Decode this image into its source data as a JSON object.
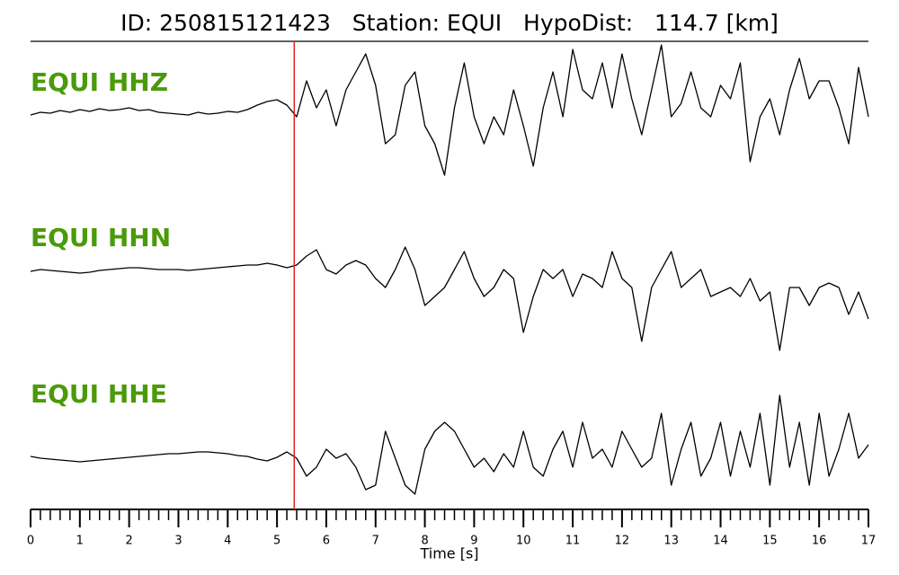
{
  "chart_data": {
    "type": "seismogram",
    "title": "ID: 250815121423   Station: EQUI   HypoDist:   114.7 [km]",
    "xlabel": "Time [s]",
    "xlim": [
      0,
      17
    ],
    "xticks": [
      0,
      1,
      2,
      3,
      4,
      5,
      6,
      7,
      8,
      9,
      10,
      11,
      12,
      13,
      14,
      15,
      16,
      17
    ],
    "xminorticks": [
      0,
      0.2,
      0.4,
      0.6,
      0.8,
      1,
      1.2,
      1.4,
      1.6,
      1.8,
      2,
      2.2,
      2.4,
      2.6,
      2.8,
      3,
      3.2,
      3.4,
      3.6,
      3.8,
      4,
      4.2,
      4.4,
      4.6,
      4.8,
      5,
      5.2,
      5.4,
      5.6,
      5.8,
      6,
      6.2,
      6.4,
      6.6,
      6.8,
      7,
      7.2,
      7.4,
      7.6,
      7.8,
      8,
      8.2,
      8.4,
      8.6,
      8.8,
      9,
      9.2,
      9.4,
      9.6,
      9.8,
      10,
      10.2,
      10.4,
      10.6,
      10.8,
      11,
      11.2,
      11.4,
      11.6,
      11.8,
      12,
      12.2,
      12.4,
      12.6,
      12.8,
      13,
      13.2,
      13.4,
      13.6,
      13.8,
      14,
      14.2,
      14.4,
      14.6,
      14.8,
      15,
      15.2,
      15.4,
      15.6,
      15.8,
      16,
      16.2,
      16.4,
      16.6,
      16.8,
      17
    ],
    "ylim": [
      -90,
      90
    ],
    "pick": 5.35,
    "pick_color": "#e02020",
    "label_color": "#4a9a0a",
    "x": [
      0,
      0.2,
      0.4,
      0.6,
      0.8,
      1,
      1.2,
      1.4,
      1.6,
      1.8,
      2,
      2.2,
      2.4,
      2.6,
      2.8,
      3,
      3.2,
      3.4,
      3.6,
      3.8,
      4,
      4.2,
      4.4,
      4.6,
      4.8,
      5,
      5.2,
      5.4,
      5.6,
      5.8,
      6,
      6.2,
      6.4,
      6.6,
      6.8,
      7,
      7.2,
      7.4,
      7.6,
      7.8,
      8,
      8.2,
      8.4,
      8.6,
      8.8,
      9,
      9.2,
      9.4,
      9.6,
      9.8,
      10,
      10.2,
      10.4,
      10.6,
      10.8,
      11,
      11.2,
      11.4,
      11.6,
      11.8,
      12,
      12.2,
      12.4,
      12.6,
      12.8,
      13,
      13.2,
      13.4,
      13.6,
      13.8,
      14,
      14.2,
      14.4,
      14.6,
      14.8,
      15,
      15.2,
      15.4,
      15.6,
      15.8,
      16,
      16.2,
      16.4,
      16.6,
      16.8,
      17
    ],
    "series": [
      {
        "name": "EQUI HHZ",
        "color": "#000000",
        "values": [
          -3,
          0,
          -1,
          2,
          0,
          3,
          1,
          4,
          2,
          3,
          5,
          2,
          3,
          0,
          -1,
          -2,
          -3,
          0,
          -2,
          -1,
          1,
          0,
          3,
          8,
          12,
          14,
          8,
          -5,
          35,
          5,
          25,
          -15,
          25,
          45,
          65,
          30,
          -35,
          -25,
          30,
          45,
          -15,
          -35,
          -70,
          5,
          55,
          -5,
          -35,
          -5,
          -25,
          25,
          -15,
          -60,
          5,
          45,
          -5,
          70,
          25,
          15,
          55,
          5,
          65,
          15,
          -25,
          25,
          75,
          -5,
          10,
          45,
          5,
          -5,
          30,
          15,
          55,
          -55,
          -5,
          15,
          -25,
          25,
          60,
          15,
          35,
          35,
          5,
          -35,
          50,
          -5
        ]
      },
      {
        "name": "EQUI HHN",
        "color": "#000000",
        "values": [
          -2,
          0,
          -1,
          -2,
          -3,
          -4,
          -3,
          -1,
          0,
          1,
          2,
          2,
          1,
          0,
          0,
          0,
          -1,
          0,
          1,
          2,
          3,
          4,
          5,
          5,
          7,
          5,
          2,
          5,
          15,
          22,
          0,
          -5,
          5,
          10,
          5,
          -10,
          -20,
          0,
          25,
          0,
          -40,
          -30,
          -20,
          0,
          20,
          -10,
          -30,
          -20,
          0,
          -10,
          -70,
          -30,
          0,
          -10,
          0,
          -30,
          -5,
          -10,
          -20,
          20,
          -10,
          -20,
          -80,
          -20,
          0,
          20,
          -20,
          -10,
          0,
          -30,
          -25,
          -20,
          -30,
          -10,
          -35,
          -25,
          -90,
          -20,
          -20,
          -40,
          -20,
          -15,
          -20,
          -50,
          -25,
          -55
        ]
      },
      {
        "name": "EQUI HHE",
        "color": "#000000",
        "values": [
          -3,
          -5,
          -6,
          -7,
          -8,
          -9,
          -8,
          -7,
          -6,
          -5,
          -4,
          -3,
          -2,
          -1,
          0,
          0,
          1,
          2,
          2,
          1,
          0,
          -2,
          -3,
          -6,
          -8,
          -4,
          2,
          -5,
          -25,
          -15,
          5,
          -5,
          0,
          -15,
          -40,
          -35,
          25,
          -5,
          -35,
          -45,
          5,
          25,
          35,
          25,
          5,
          -15,
          -5,
          -20,
          0,
          -15,
          25,
          -15,
          -25,
          5,
          25,
          -15,
          35,
          -5,
          5,
          -15,
          25,
          5,
          -15,
          -5,
          45,
          -35,
          5,
          35,
          -25,
          -5,
          35,
          -25,
          25,
          -15,
          45,
          -35,
          65,
          -15,
          35,
          -35,
          45,
          -25,
          5,
          45,
          -5,
          10
        ]
      }
    ]
  }
}
